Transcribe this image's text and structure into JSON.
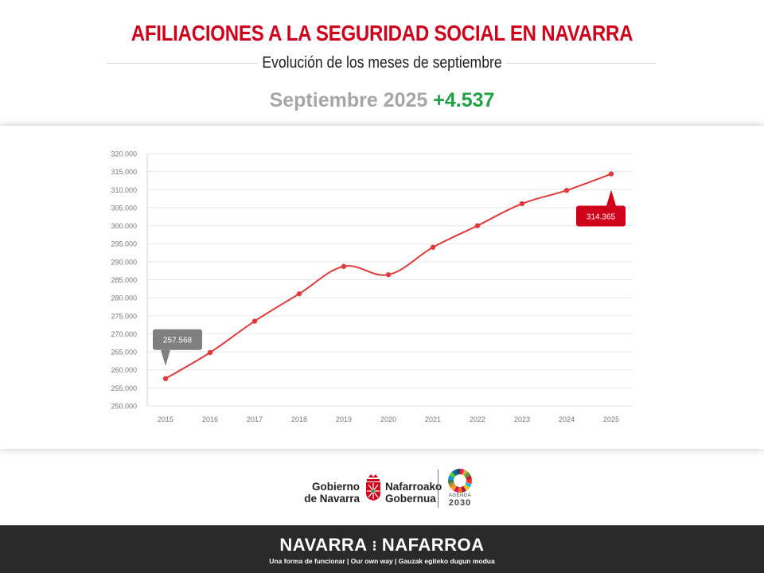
{
  "header": {
    "title": "AFILIACIONES A LA SEGURIDAD SOCIAL EN NAVARRA",
    "subtitle": "Evolución de los meses de septiembre",
    "headline_label": "Septiembre 2025",
    "headline_delta": "+4.537",
    "delta_color": "#1fa244",
    "title_color": "#d0021b"
  },
  "chart_data": {
    "type": "line",
    "title": "",
    "xlabel": "",
    "ylabel": "",
    "x": [
      "2015",
      "2016",
      "2017",
      "2018",
      "2019",
      "2020",
      "2021",
      "2022",
      "2023",
      "2024",
      "2025"
    ],
    "series": [
      {
        "values": [
          257568,
          264800,
          273500,
          281100,
          288700,
          286400,
          294000,
          300000,
          306100,
          309800,
          314365
        ],
        "color": "#e03a3a"
      }
    ],
    "ylim": [
      250000,
      320000
    ],
    "yticks": [
      "250.000",
      "255.000",
      "260.000",
      "265.000",
      "270.000",
      "275.000",
      "280.000",
      "285.000",
      "290.000",
      "295.000",
      "300.000",
      "305.000",
      "310.000",
      "315.000",
      "320.000"
    ],
    "ytick_values": [
      250000,
      255000,
      260000,
      265000,
      270000,
      275000,
      280000,
      285000,
      290000,
      295000,
      300000,
      305000,
      310000,
      315000,
      320000
    ],
    "grid": true,
    "annotations": [
      {
        "index": 0,
        "label": "257.568",
        "color": "#7f7f7f",
        "placement": "above"
      },
      {
        "index": 10,
        "label": "314.365",
        "color": "#d0021b",
        "placement": "below"
      }
    ]
  },
  "logos": {
    "gov_left": [
      "Gobierno",
      "de Navarra"
    ],
    "gov_right": [
      "Nafarroako",
      "Gobernua"
    ],
    "agenda_top": "AGENDA",
    "agenda_bottom": "2030"
  },
  "footer": {
    "brand_left": "NAVARRA",
    "brand_right": "NAFARROA",
    "tagline": "Una forma de funcionar | Our own way | Gauzak egiteko dugun modua"
  }
}
